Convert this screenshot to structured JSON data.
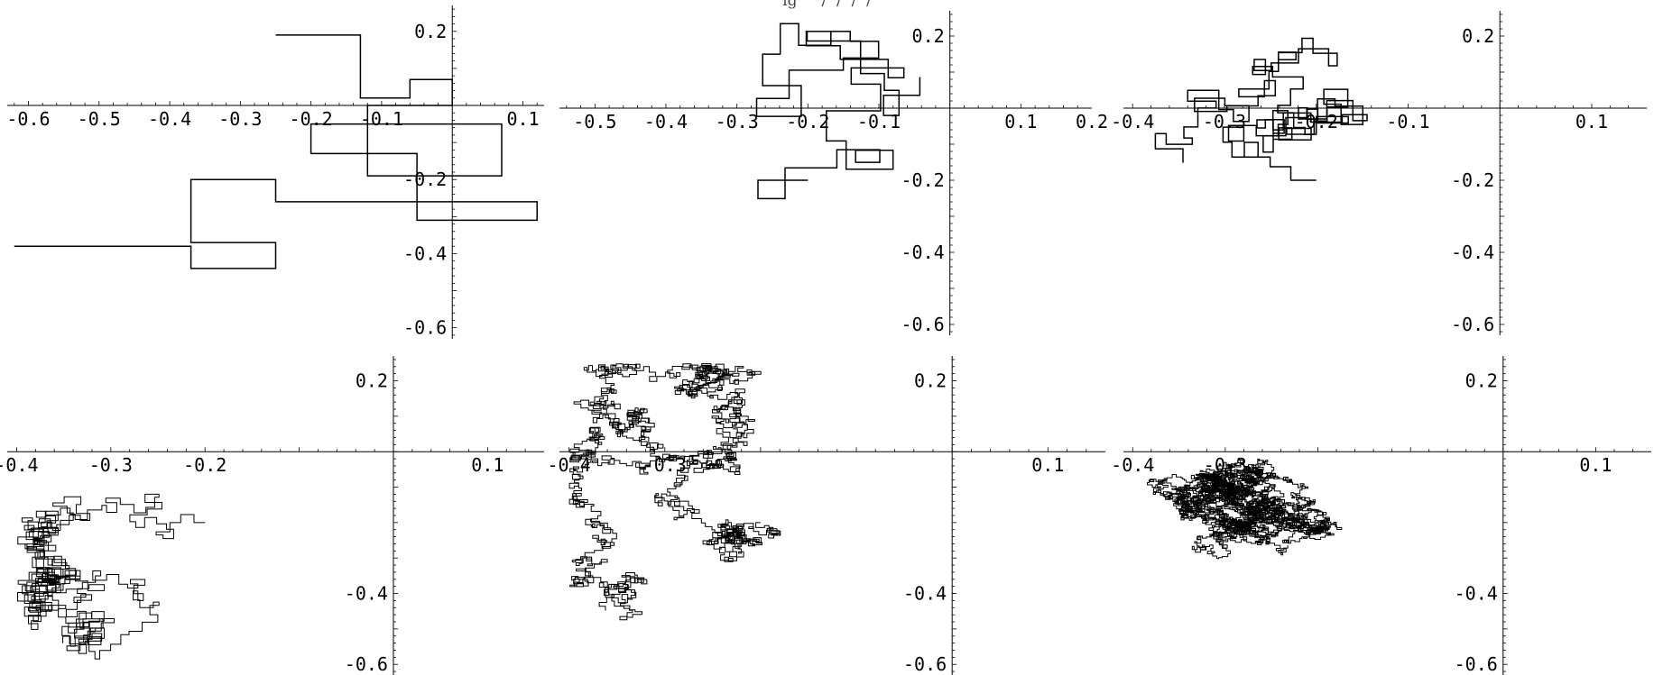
{
  "figure_caption": "ig     /  /  /  /",
  "chart_data": [
    {
      "type": "line",
      "xticks": [
        "-0.6",
        "-0.5",
        "-0.4",
        "-0.3",
        "-0.2",
        "-0.1",
        "0.1"
      ],
      "xtick_values": [
        -0.6,
        -0.5,
        -0.4,
        -0.3,
        -0.2,
        -0.1,
        0.1
      ],
      "yticks": [
        "0.2",
        "-0.2",
        "-0.4",
        "-0.6"
      ],
      "ytick_values": [
        0.2,
        -0.2,
        -0.4,
        -0.6
      ],
      "xlim": [
        -0.63,
        0.13
      ],
      "ylim": [
        -0.63,
        0.27
      ],
      "series": [
        {
          "steps": 14,
          "x": [
            -0.62,
            -0.37,
            -0.37,
            -0.25,
            -0.25,
            -0.37,
            -0.37,
            -0.25,
            -0.25,
            0.12,
            0.12,
            -0.05,
            -0.05,
            -0.2,
            -0.2,
            0.07,
            0.07,
            -0.12,
            -0.12,
            0.0,
            0.0,
            -0.06,
            -0.06,
            -0.13,
            -0.13,
            -0.19,
            -0.19,
            -0.25
          ],
          "y": [
            -0.38,
            -0.38,
            -0.44,
            -0.44,
            -0.37,
            -0.37,
            -0.2,
            -0.2,
            -0.26,
            -0.26,
            -0.31,
            -0.31,
            -0.13,
            -0.13,
            -0.05,
            -0.05,
            -0.19,
            -0.19,
            -0.0,
            -0.0,
            0.07,
            0.07,
            0.02,
            0.02,
            0.19,
            0.19,
            0.19,
            0.19
          ]
        }
      ]
    },
    {
      "type": "line",
      "xticks": [
        "-0.5",
        "-0.4",
        "-0.3",
        "-0.2",
        "-0.1",
        "0.1",
        "0.2"
      ],
      "xtick_values": [
        -0.5,
        -0.4,
        -0.3,
        -0.2,
        -0.1,
        0.1,
        0.2
      ],
      "yticks": [
        "0.2",
        "-0.2",
        "-0.4",
        "-0.6"
      ],
      "ytick_values": [
        0.2,
        -0.2,
        -0.4,
        -0.6
      ],
      "xlim": [
        -0.55,
        0.2
      ],
      "ylim": [
        -0.63,
        0.27
      ],
      "series": [
        {
          "steps": 60
        }
      ]
    },
    {
      "type": "line",
      "xticks": [
        "-0.4",
        "-0.3",
        "-0.2",
        "-0.1",
        "0.1"
      ],
      "xtick_values": [
        -0.4,
        -0.3,
        -0.2,
        -0.1,
        0.1
      ],
      "yticks": [
        "0.2",
        "-0.2",
        "-0.4",
        "-0.6"
      ],
      "ytick_values": [
        0.2,
        -0.2,
        -0.4,
        -0.6
      ],
      "xlim": [
        -0.41,
        0.16
      ],
      "ylim": [
        -0.63,
        0.27
      ],
      "series": [
        {
          "steps": 160
        }
      ]
    },
    {
      "type": "line",
      "xticks": [
        "-0.4",
        "-0.3",
        "-0.2",
        "0.1"
      ],
      "xtick_values": [
        -0.4,
        -0.3,
        -0.2,
        0.1
      ],
      "yticks": [
        "0.2",
        "-0.4",
        "-0.6"
      ],
      "ytick_values": [
        0.2,
        -0.4,
        -0.6
      ],
      "xlim": [
        -0.41,
        0.16
      ],
      "ylim": [
        -0.63,
        0.27
      ],
      "series": [
        {
          "steps": 600
        }
      ]
    },
    {
      "type": "line",
      "xticks": [
        "-0.4",
        "-0.3",
        "0.1"
      ],
      "xtick_values": [
        -0.4,
        -0.3,
        0.1
      ],
      "yticks": [
        "0.2",
        "-0.4",
        "-0.6"
      ],
      "ytick_values": [
        0.2,
        -0.4,
        -0.6
      ],
      "xlim": [
        -0.41,
        0.16
      ],
      "ylim": [
        -0.63,
        0.27
      ],
      "series": [
        {
          "steps": 2000
        }
      ]
    },
    {
      "type": "line",
      "xticks": [
        "-0.4",
        "-0.3",
        "0.1"
      ],
      "xtick_values": [
        -0.4,
        -0.3,
        0.1
      ],
      "yticks": [
        "0.2",
        "-0.4",
        "-0.6"
      ],
      "ytick_values": [
        0.2,
        -0.4,
        -0.6
      ],
      "xlim": [
        -0.41,
        0.16
      ],
      "ylim": [
        -0.63,
        0.27
      ],
      "series": [
        {
          "steps": 5000
        }
      ]
    }
  ]
}
